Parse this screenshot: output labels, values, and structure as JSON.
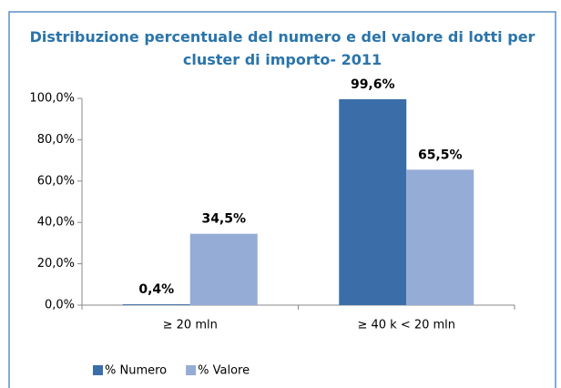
{
  "chart_data": {
    "type": "bar",
    "title": "Distribuzione percentuale del numero e del valore di lotti per cluster di importo- 2011",
    "categories": [
      "≥ 20 mln",
      "≥ 40 k < 20 mln"
    ],
    "series": [
      {
        "name": "% Numero",
        "color": "#3b6ea8",
        "values": [
          0.4,
          99.6
        ],
        "value_labels": [
          "0,4%",
          "99,6%"
        ]
      },
      {
        "name": "% Valore",
        "color": "#95acd6",
        "values": [
          34.5,
          65.5
        ],
        "value_labels": [
          "34,5%",
          "65,5%"
        ]
      }
    ],
    "ylim": [
      0,
      100
    ],
    "yticks": [
      {
        "value": 0,
        "label": "0,0%"
      },
      {
        "value": 20,
        "label": "20,0%"
      },
      {
        "value": 40,
        "label": "40,0%"
      },
      {
        "value": 60,
        "label": "60,0%"
      },
      {
        "value": 80,
        "label": "80,0%"
      },
      {
        "value": 100,
        "label": "100,0%"
      }
    ],
    "grid": false,
    "legend": "bottom-left"
  }
}
